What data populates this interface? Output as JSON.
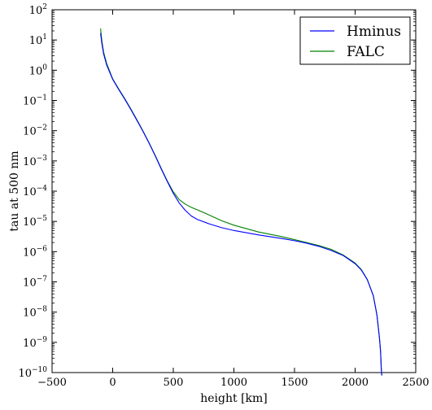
{
  "chart_data": {
    "type": "line",
    "title": "",
    "xlabel": "height [km]",
    "ylabel": "tau at 500 nm",
    "xlim": [
      -500,
      2500
    ],
    "ylim": [
      1e-10,
      100
    ],
    "yscale": "log",
    "grid": false,
    "legend": "top-right",
    "x_ticks": [
      -500,
      0,
      500,
      1000,
      1500,
      2000,
      2500
    ],
    "x_tick_labels": [
      "−500",
      "0",
      "500",
      "1000",
      "1500",
      "2000",
      "2500"
    ],
    "y_ticks": [
      1e-10,
      1e-09,
      1e-08,
      1e-07,
      1e-06,
      1e-05,
      0.0001,
      0.001,
      0.01,
      0.1,
      1,
      10,
      100
    ],
    "y_tick_bases": [
      "10",
      "10",
      "10",
      "10",
      "10",
      "10",
      "10",
      "10",
      "10",
      "10",
      "10",
      "10",
      "10"
    ],
    "y_tick_exponents": [
      "−10",
      "−9",
      "−8",
      "−7",
      "−6",
      "−5",
      "−4",
      "−3",
      "−2",
      "−1",
      "0",
      "1",
      "2"
    ],
    "series": [
      {
        "name": "Hminus",
        "color": "#0000ff",
        "x": [
          -100,
          -90,
          -75,
          -50,
          0,
          50,
          100,
          150,
          200,
          250,
          300,
          350,
          400,
          450,
          500,
          550,
          600,
          650,
          700,
          800,
          900,
          1000,
          1200,
          1400,
          1500,
          1600,
          1700,
          1800,
          1900,
          2000,
          2050,
          2100,
          2150,
          2180,
          2200,
          2210,
          2215,
          2220
        ],
        "y": [
          17,
          8,
          3.5,
          1.5,
          0.5,
          0.23,
          0.11,
          0.05,
          0.022,
          0.0095,
          0.0039,
          0.0015,
          0.00055,
          0.00021,
          8.5e-05,
          4e-05,
          2.3e-05,
          1.5e-05,
          1.15e-05,
          8.2e-06,
          6.2e-06,
          5e-06,
          3.6e-06,
          2.7e-06,
          2.3e-06,
          1.9e-06,
          1.5e-06,
          1.1e-06,
          7.5e-07,
          4e-07,
          2.5e-07,
          1.2e-07,
          3.5e-08,
          8e-09,
          1.5e-09,
          5e-10,
          1.5e-10,
          8e-11
        ]
      },
      {
        "name": "FALC",
        "color": "#008000",
        "x": [
          -100,
          -90,
          -75,
          -50,
          0,
          50,
          100,
          150,
          200,
          250,
          300,
          350,
          400,
          450,
          500,
          550,
          600,
          650,
          700,
          800,
          900,
          1000,
          1200,
          1400,
          1500,
          1600,
          1700,
          1800,
          1900,
          2000,
          2050,
          2100,
          2150,
          2180,
          2200,
          2210,
          2215,
          2220
        ],
        "y": [
          24,
          10,
          4,
          1.7,
          0.52,
          0.24,
          0.115,
          0.052,
          0.023,
          0.0098,
          0.004,
          0.00155,
          0.00057,
          0.00022,
          9.5e-05,
          5.2e-05,
          3.7e-05,
          2.9e-05,
          2.4e-05,
          1.6e-05,
          1.05e-05,
          7.5e-06,
          4.5e-06,
          3.1e-06,
          2.5e-06,
          2e-06,
          1.6e-06,
          1.2e-06,
          7.8e-07,
          4.2e-07,
          2.6e-07,
          1.2e-07,
          3.5e-08,
          8e-09,
          1.5e-09,
          5e-10,
          1.5e-10,
          8e-11
        ]
      }
    ]
  }
}
